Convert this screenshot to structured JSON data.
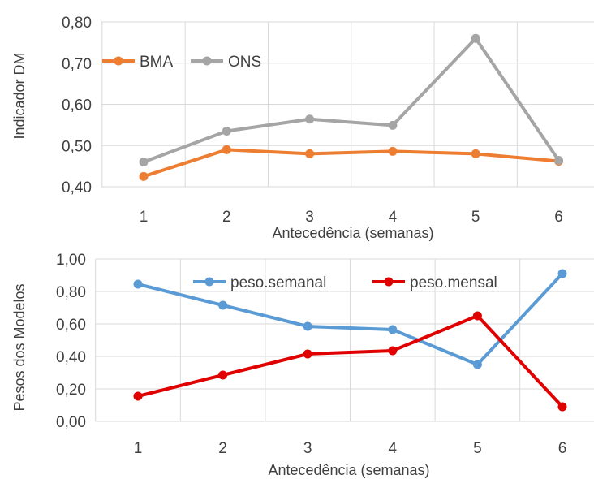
{
  "chart_data": [
    {
      "type": "line",
      "title": "",
      "xlabel": "Antecedência (semanas)",
      "ylabel": "Indicador DM",
      "categories": [
        "1",
        "2",
        "3",
        "4",
        "5",
        "6"
      ],
      "yticks": [
        "0,40",
        "0,50",
        "0,60",
        "0,70",
        "0,80"
      ],
      "ylim": [
        0.4,
        0.8
      ],
      "grid": true,
      "legend_position": "top-left",
      "series": [
        {
          "name": "BMA",
          "color": "#ed7d31",
          "values": [
            0.425,
            0.49,
            0.48,
            0.486,
            0.48,
            0.462
          ]
        },
        {
          "name": "ONS",
          "color": "#a5a5a5",
          "values": [
            0.46,
            0.535,
            0.564,
            0.549,
            0.76,
            0.464
          ]
        }
      ]
    },
    {
      "type": "line",
      "title": "",
      "xlabel": "Antecedência (semanas)",
      "ylabel": "Pesos  dos Modelos",
      "categories": [
        "1",
        "2",
        "3",
        "4",
        "5",
        "6"
      ],
      "yticks": [
        "0,00",
        "0,20",
        "0,40",
        "0,60",
        "0,80",
        "1,00"
      ],
      "ylim": [
        0.0,
        1.0
      ],
      "grid": true,
      "legend_position": "top",
      "series": [
        {
          "name": "peso.semanal",
          "color": "#5b9bd5",
          "values": [
            0.845,
            0.715,
            0.585,
            0.565,
            0.35,
            0.91
          ]
        },
        {
          "name": "peso.mensal",
          "color": "#e00000",
          "values": [
            0.155,
            0.285,
            0.415,
            0.435,
            0.65,
            0.09
          ]
        }
      ]
    }
  ]
}
